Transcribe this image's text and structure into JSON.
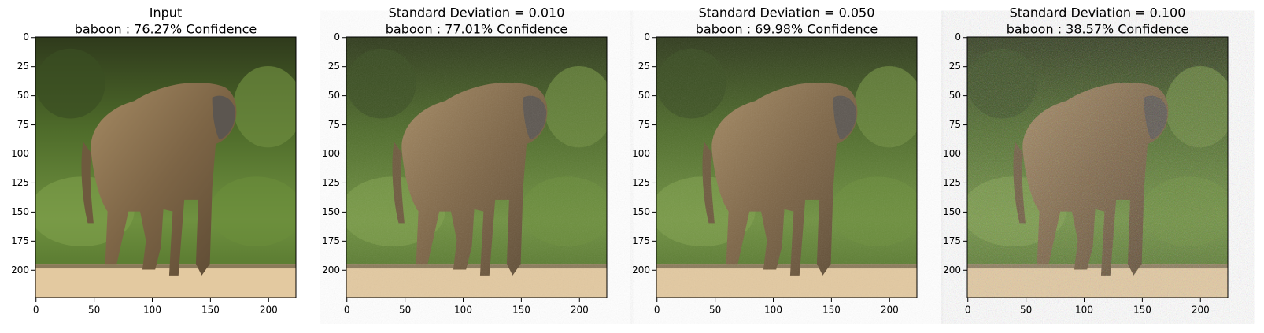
{
  "chart_data": [
    {
      "type": "image",
      "title": "Input",
      "subtitle": "baboon : 76.27% Confidence",
      "xlim": [
        -0.5,
        223.5
      ],
      "ylim": [
        223.5,
        -0.5
      ],
      "xticks": [
        0,
        50,
        100,
        150,
        200
      ],
      "yticks": [
        0,
        25,
        50,
        75,
        100,
        125,
        150,
        175,
        200
      ]
    },
    {
      "type": "image",
      "title": "Standard Deviation = 0.010",
      "subtitle": "baboon : 77.01% Confidence",
      "xlim": [
        -0.5,
        223.5
      ],
      "ylim": [
        223.5,
        -0.5
      ],
      "xticks": [
        0,
        50,
        100,
        150,
        200
      ],
      "yticks": [
        0,
        25,
        50,
        75,
        100,
        125,
        150,
        175,
        200
      ]
    },
    {
      "type": "image",
      "title": "Standard Deviation = 0.050",
      "subtitle": "baboon : 69.98% Confidence",
      "xlim": [
        -0.5,
        223.5
      ],
      "ylim": [
        223.5,
        -0.5
      ],
      "xticks": [
        0,
        50,
        100,
        150,
        200
      ],
      "yticks": [
        0,
        25,
        50,
        75,
        100,
        125,
        150,
        175,
        200
      ]
    },
    {
      "type": "image",
      "title": "Standard Deviation = 0.100",
      "subtitle": "baboon : 38.57% Confidence",
      "xlim": [
        -0.5,
        223.5
      ],
      "ylim": [
        223.5,
        -0.5
      ],
      "xticks": [
        0,
        50,
        100,
        150,
        200
      ],
      "yticks": [
        0,
        25,
        50,
        75,
        100,
        125,
        150,
        175,
        200
      ]
    }
  ]
}
